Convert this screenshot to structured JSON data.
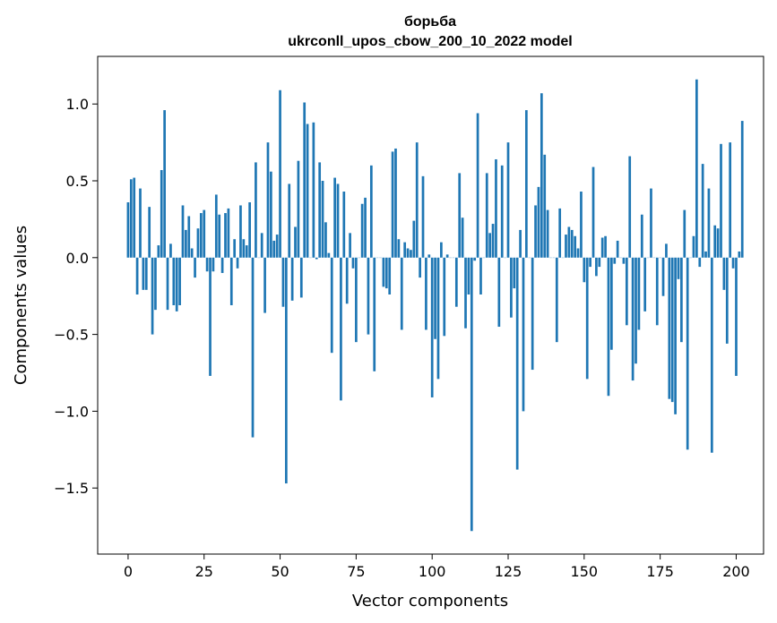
{
  "chart_data": {
    "type": "bar",
    "title": "борьба",
    "subtitle": "ukrconll_upos_cbow_200_10_2022 model",
    "xlabel": "Vector components",
    "ylabel": "Components values",
    "xlim": [
      -10,
      209
    ],
    "ylim": [
      -1.93,
      1.31
    ],
    "xticks": [
      0,
      25,
      50,
      75,
      100,
      125,
      150,
      175,
      200
    ],
    "xtick_labels": [
      "0",
      "25",
      "50",
      "75",
      "100",
      "125",
      "150",
      "175",
      "200"
    ],
    "yticks": [
      1.0,
      0.5,
      0.0,
      -0.5,
      -1.0,
      -1.5
    ],
    "ytick_labels": [
      "1.0",
      "0.5",
      "0.0",
      "−0.5",
      "−1.0",
      "−1.5"
    ],
    "bar_color": "#1f77b4",
    "grid": false,
    "values": [
      0.36,
      0.51,
      0.52,
      -0.24,
      0.45,
      -0.21,
      -0.21,
      0.33,
      -0.5,
      -0.34,
      0.08,
      0.57,
      0.96,
      -0.34,
      0.09,
      -0.31,
      -0.35,
      -0.31,
      0.34,
      0.18,
      0.27,
      0.06,
      -0.13,
      0.19,
      0.29,
      0.31,
      -0.09,
      -0.77,
      -0.09,
      0.41,
      0.28,
      -0.1,
      0.29,
      0.32,
      -0.31,
      0.12,
      -0.07,
      0.34,
      0.12,
      0.08,
      0.36,
      -1.17,
      0.62,
      0.0,
      0.16,
      -0.36,
      0.75,
      0.56,
      0.11,
      0.15,
      1.09,
      -0.32,
      -1.47,
      0.48,
      -0.28,
      0.2,
      0.63,
      -0.26,
      1.01,
      0.87,
      0.0,
      0.88,
      -0.01,
      0.62,
      0.5,
      0.23,
      0.03,
      -0.62,
      0.52,
      0.48,
      -0.93,
      0.43,
      -0.3,
      0.16,
      -0.07,
      -0.55,
      0.0,
      0.35,
      0.39,
      -0.5,
      0.6,
      -0.74,
      0.0,
      0.0,
      -0.19,
      -0.2,
      -0.24,
      0.69,
      0.71,
      0.12,
      -0.47,
      0.1,
      0.06,
      0.05,
      0.24,
      0.75,
      -0.13,
      0.53,
      -0.47,
      0.02,
      -0.91,
      -0.53,
      -0.79,
      0.1,
      -0.51,
      0.02,
      0.0,
      0.0,
      -0.32,
      0.55,
      0.26,
      -0.46,
      -0.24,
      -1.78,
      -0.02,
      0.94,
      -0.24,
      0.0,
      0.55,
      0.16,
      0.22,
      0.64,
      -0.45,
      0.6,
      0.0,
      0.75,
      -0.39,
      -0.2,
      -1.38,
      0.18,
      -1.0,
      0.96,
      0.0,
      -0.73,
      0.34,
      0.46,
      1.07,
      0.67,
      0.31,
      0.0,
      0.0,
      -0.55,
      0.32,
      0.0,
      0.15,
      0.2,
      0.18,
      0.14,
      0.06,
      0.43,
      -0.16,
      -0.79,
      -0.06,
      0.59,
      -0.12,
      -0.06,
      0.13,
      0.14,
      -0.9,
      -0.6,
      -0.04,
      0.11,
      0.0,
      -0.04,
      -0.44,
      0.66,
      -0.8,
      -0.69,
      -0.47,
      0.28,
      -0.35,
      0.0,
      0.45,
      0.0,
      -0.44,
      0.0,
      -0.25,
      0.09,
      -0.92,
      -0.94,
      -1.02,
      -0.14,
      -0.55,
      0.31,
      -1.25,
      0.0,
      0.14,
      1.16,
      -0.06,
      0.61,
      0.04,
      0.45,
      -1.27,
      0.21,
      0.19,
      0.74,
      -0.21,
      -0.56,
      0.75,
      -0.07,
      -0.77,
      0.04,
      0.89
    ]
  }
}
